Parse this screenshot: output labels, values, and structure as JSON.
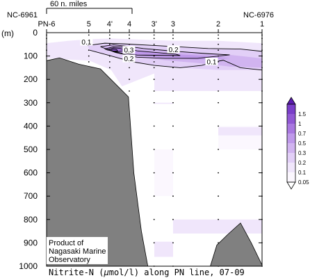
{
  "scale_bar": {
    "label": "60 n. miles"
  },
  "ends": {
    "left": "NC-6961",
    "right": "NC-6976"
  },
  "chart_data": {
    "type": "contour",
    "caption": {
      "prefix": "Nitrite-N (",
      "mu": "μ",
      "suffix": "mol/l) along PN line, 07-09"
    },
    "ylabel": "(m)",
    "ylim": [
      0,
      1000
    ],
    "y_ticks": [
      0,
      100,
      200,
      300,
      400,
      500,
      600,
      700,
      800,
      900,
      1000
    ],
    "stations": [
      {
        "label": "PN-6",
        "x": 0.0
      },
      {
        "label": "5",
        "x": 0.196
      },
      {
        "label": "4'",
        "x": 0.293
      },
      {
        "label": "4",
        "x": 0.384
      },
      {
        "label": "3'",
        "x": 0.499
      },
      {
        "label": "3",
        "x": 0.587
      },
      {
        "label": "2",
        "x": 0.797
      },
      {
        "label": "1",
        "x": 1.0
      }
    ],
    "contour_labels": [
      {
        "text": "0.1",
        "x": 0.185,
        "depth": 40
      },
      {
        "text": "0.3",
        "x": 0.382,
        "depth": 75
      },
      {
        "text": "0.2",
        "x": 0.382,
        "depth": 112
      },
      {
        "text": "0.2",
        "x": 0.589,
        "depth": 73
      },
      {
        "text": "0.1",
        "x": 0.766,
        "depth": 125
      }
    ],
    "colorbar": {
      "levels": [
        "0.05",
        "0.1",
        "0.2",
        "0.3",
        "0.5",
        "0.7",
        "1",
        "1.5"
      ],
      "colors": [
        "#fbf7fe",
        "#f0e6fb",
        "#e2cff7",
        "#d1b4f0",
        "#bf99ea",
        "#a978e0",
        "#9158d4",
        "#7a3ec9"
      ]
    },
    "seafloor": [
      [
        0.0,
        120
      ],
      [
        0.06,
        108
      ],
      [
        0.15,
        135
      ],
      [
        0.25,
        155
      ],
      [
        0.38,
        275
      ],
      [
        0.405,
        600
      ],
      [
        0.44,
        850
      ],
      [
        0.47,
        1000
      ],
      [
        0.0,
        1000
      ]
    ],
    "seamount": [
      [
        0.76,
        1000
      ],
      [
        0.79,
        910
      ],
      [
        0.84,
        865
      ],
      [
        0.9,
        815
      ],
      [
        0.95,
        900
      ],
      [
        1.0,
        995
      ],
      [
        1.0,
        1000
      ]
    ]
  },
  "credit": {
    "line1": "Product of",
    "line2": "Nagasaki Marine",
    "line3": "Observatory"
  }
}
